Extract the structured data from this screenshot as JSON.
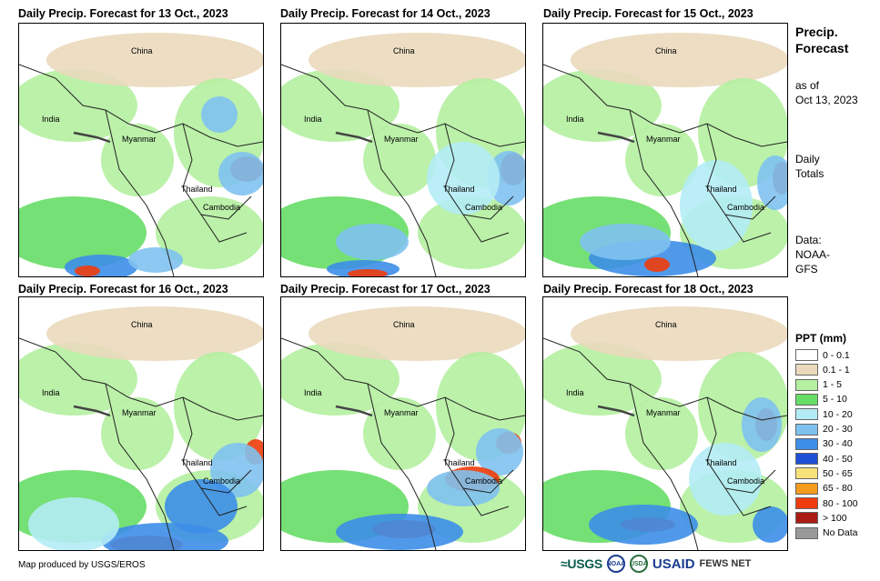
{
  "panels": [
    {
      "title": "Daily Precip. Forecast for 13 Oct., 2023",
      "day": 0
    },
    {
      "title": "Daily Precip. Forecast for 14 Oct., 2023",
      "day": 1
    },
    {
      "title": "Daily Precip. Forecast for 15 Oct., 2023",
      "day": 2
    },
    {
      "title": "Daily Precip. Forecast for 16 Oct., 2023",
      "day": 3
    },
    {
      "title": "Daily Precip. Forecast for 17 Oct., 2023",
      "day": 4
    },
    {
      "title": "Daily Precip. Forecast for 18 Oct., 2023",
      "day": 5
    }
  ],
  "place_labels": {
    "china": "China",
    "india": "India",
    "myanmar": "Myanmar",
    "thailand": "Thailand",
    "cambodia": "Cambodia"
  },
  "sidebar": {
    "title_line1": "Precip.",
    "title_line2": "Forecast",
    "asof_line1": "as of",
    "asof_line2": "Oct 13, 2023",
    "totals_line1": "Daily",
    "totals_line2": "Totals",
    "data_line1": "Data:",
    "data_line2": "NOAA-",
    "data_line3": "GFS"
  },
  "legend": {
    "title": "PPT (mm)",
    "items": [
      {
        "label": "0 - 0.1",
        "color": "#ffffff"
      },
      {
        "label": "0.1 - 1",
        "color": "#ead9bc"
      },
      {
        "label": "1 - 5",
        "color": "#b4f0a0"
      },
      {
        "label": "5 - 10",
        "color": "#66dd66"
      },
      {
        "label": "10 - 20",
        "color": "#b4ecf5"
      },
      {
        "label": "20 - 30",
        "color": "#7fc2f0"
      },
      {
        "label": "30 - 40",
        "color": "#3d8ee8"
      },
      {
        "label": "40 - 50",
        "color": "#1f4fd6"
      },
      {
        "label": "50 - 65",
        "color": "#f7e27a"
      },
      {
        "label": "65 - 80",
        "color": "#f59b1e"
      },
      {
        "label": "80 - 100",
        "color": "#f03c0c"
      },
      {
        "label": "> 100",
        "color": "#a81c14"
      },
      {
        "label": "No Data",
        "color": "#999999"
      }
    ]
  },
  "footer": {
    "credit": "Map produced by USGS/EROS",
    "logo_usgs": "≈USGS",
    "logo_noaa": "NOAA",
    "logo_usda": "USDA",
    "logo_usaid": "USAID",
    "logo_fews": "FEWS NET"
  }
}
